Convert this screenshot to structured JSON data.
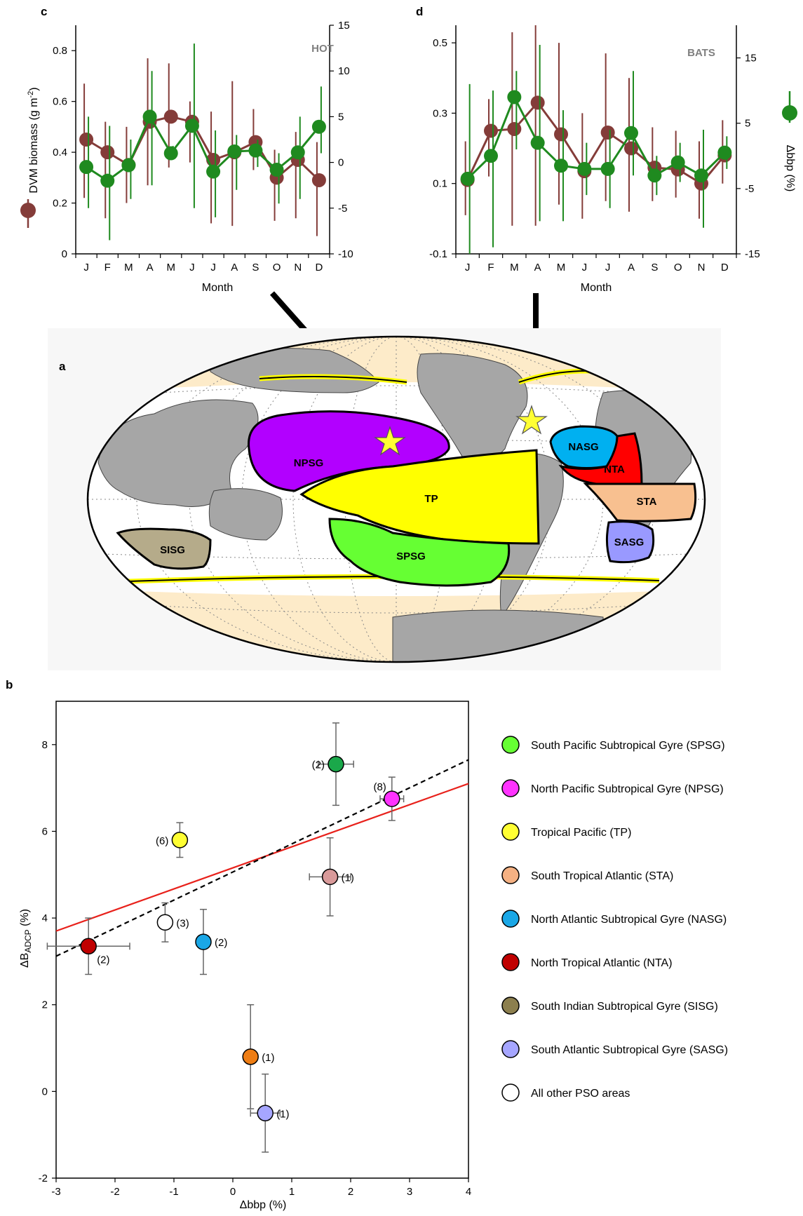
{
  "panels": {
    "a": "a",
    "b": "b",
    "c": "c",
    "d": "d"
  },
  "colors": {
    "dvm": "#843c39",
    "bbp": "#1f8a1f",
    "fit_red": "#e8211b",
    "fit_black": "#000000",
    "land": "#a6a6a6",
    "ocean_highlat": "#fdebc9",
    "ocean_gyre_band": "#ffffff",
    "boundary_yellow": "#ffff00"
  },
  "map": {
    "regions": [
      {
        "code": "NPSG",
        "label": "NPSG",
        "color": "#b200ff"
      },
      {
        "code": "TP",
        "label": "TP",
        "color": "#ffff00"
      },
      {
        "code": "SPSG",
        "label": "SPSG",
        "color": "#66ff33"
      },
      {
        "code": "SISG",
        "label": "SISG",
        "color": "#b5ab8a"
      },
      {
        "code": "NASG",
        "label": "NASG",
        "color": "#00b0f0"
      },
      {
        "code": "NTA",
        "label": "NTA",
        "color": "#ff0000"
      },
      {
        "code": "STA",
        "label": "STA",
        "color": "#f8c090"
      },
      {
        "code": "SASG",
        "label": "SASG",
        "color": "#9999ff"
      }
    ]
  },
  "chart_data": [
    {
      "panel": "c",
      "type": "line",
      "tag": "HOT",
      "xlabel": "Month",
      "ylabel_left_prefix": "DVM biomass (g m",
      "ylabel_left_sup": "-2",
      "ylabel_left_suffix": ")",
      "ylim_left": [
        0,
        0.9
      ],
      "yticks_left": [
        0,
        0.2,
        0.4,
        0.6,
        0.8
      ],
      "ytick_labels_left": [
        "0",
        "0.2",
        "0.4",
        "0.6",
        "0.8"
      ],
      "ylim_right": [
        -10,
        15
      ],
      "yticks_right": [
        -10,
        -5,
        0,
        5,
        10,
        15
      ],
      "ytick_labels_right": [
        "-10",
        "-5",
        "0",
        "5",
        "10",
        "15"
      ],
      "categories": [
        "J",
        "F",
        "M",
        "A",
        "M",
        "J",
        "J",
        "A",
        "S",
        "O",
        "N",
        "D"
      ],
      "series": [
        {
          "key": "dvm",
          "axis": "left",
          "values": [
            0.45,
            0.4,
            0.35,
            0.52,
            0.54,
            0.52,
            0.37,
            0.4,
            0.44,
            0.3,
            0.37,
            0.29
          ],
          "err_low": [
            0.22,
            0.14,
            0.2,
            0.27,
            0.34,
            0.36,
            0.12,
            0.11,
            0.33,
            0.13,
            0.14,
            0.07
          ],
          "err_high": [
            0.67,
            0.52,
            0.5,
            0.77,
            0.75,
            0.6,
            0.56,
            0.68,
            0.57,
            0.41,
            0.48,
            0.44
          ]
        },
        {
          "key": "bbp",
          "axis": "right",
          "values": [
            -0.5,
            -2.0,
            -0.3,
            5.0,
            1.0,
            4.0,
            -1.0,
            1.2,
            1.3,
            -0.8,
            1.1,
            3.9
          ],
          "err_low": [
            -5.0,
            -8.5,
            -4.0,
            -2.5,
            0.5,
            -5.0,
            -6.0,
            -3.0,
            -0.5,
            -4.5,
            -4.0,
            1.0
          ],
          "err_high": [
            5.0,
            4.0,
            2.5,
            10.0,
            1.8,
            13.0,
            3.5,
            3.0,
            2.5,
            1.0,
            5.0,
            8.3
          ]
        }
      ]
    },
    {
      "panel": "d",
      "type": "line",
      "tag": "BATS",
      "xlabel": "Month",
      "ylabel_right": "Δbbp (%)",
      "ylim_left": [
        -0.1,
        0.55
      ],
      "yticks_left": [
        -0.1,
        0.1,
        0.3,
        0.5
      ],
      "ytick_labels_left": [
        "-0.1",
        "0.1",
        "0.3",
        "0.5"
      ],
      "ylim_right": [
        -15,
        20
      ],
      "yticks_right": [
        -15,
        -5,
        5,
        15
      ],
      "ytick_labels_right": [
        "-15",
        "-5",
        "5",
        "15"
      ],
      "categories": [
        "J",
        "F",
        "M",
        "A",
        "M",
        "J",
        "J",
        "A",
        "S",
        "O",
        "N",
        "D"
      ],
      "series": [
        {
          "key": "dvm",
          "axis": "left",
          "values": [
            0.11,
            0.25,
            0.255,
            0.33,
            0.24,
            0.135,
            0.245,
            0.2,
            0.145,
            0.14,
            0.1,
            0.18
          ],
          "err_low": [
            0.01,
            0.12,
            -0.02,
            -0.02,
            0.04,
            0.0,
            0.05,
            0.02,
            0.05,
            0.06,
            0.0,
            0.1
          ],
          "err_high": [
            0.22,
            0.34,
            0.53,
            0.55,
            0.5,
            0.3,
            0.47,
            0.4,
            0.26,
            0.25,
            0.22,
            0.28
          ]
        },
        {
          "key": "bbp",
          "axis": "right",
          "values": [
            -3.5,
            0.0,
            9.0,
            2.0,
            -1.5,
            -2.0,
            -2.0,
            3.5,
            -3.0,
            -1.0,
            -3.0,
            0.5
          ],
          "err_low": [
            -15.0,
            -14.0,
            1.0,
            -10.0,
            -10.0,
            -6.0,
            -8.0,
            -3.0,
            -6.0,
            -4.0,
            -11.0,
            -2.0
          ],
          "err_high": [
            11.0,
            10.0,
            13.0,
            17.0,
            7.0,
            2.0,
            4.0,
            13.0,
            0.0,
            2.0,
            4.0,
            3.0
          ]
        }
      ]
    },
    {
      "panel": "b",
      "type": "scatter",
      "xlabel": "Δbbp (%)",
      "ylabel": "ΔB",
      "ylabel_sub": "ADCP",
      "ylabel_suffix": " (%)",
      "xlim": [
        -3,
        4
      ],
      "ylim": [
        -2,
        9
      ],
      "xticks": [
        -3,
        -2,
        -1,
        0,
        1,
        2,
        3,
        4
      ],
      "xtick_labels": [
        "-3",
        "-2",
        "-1",
        "0",
        "1",
        "2",
        "3",
        "4"
      ],
      "yticks": [
        -2,
        0,
        2,
        4,
        6,
        8
      ],
      "ytick_labels": [
        "-2",
        "0",
        "2",
        "4",
        "6",
        "8"
      ],
      "points": [
        {
          "x": 1.75,
          "y": 7.55,
          "xerr": 0.3,
          "yerr": 0.95,
          "color": "#1aa84a",
          "n_label": "(2)",
          "label_side": "left"
        },
        {
          "x": 2.7,
          "y": 6.75,
          "xerr": 0.2,
          "yerr": 0.5,
          "color": "#ff33ff",
          "n_label": "(8)",
          "label_side": "upleft"
        },
        {
          "x": -0.9,
          "y": 5.8,
          "xerr": 0.0,
          "yerr": 0.4,
          "color": "#ffff33",
          "n_label": "(6)",
          "label_side": "left"
        },
        {
          "x": 1.65,
          "y": 4.95,
          "xerr": 0.35,
          "yerr": 0.9,
          "color": "#d99a9a",
          "n_label": "(1)",
          "label_side": "right"
        },
        {
          "x": -1.15,
          "y": 3.9,
          "xerr": 0.0,
          "yerr": 0.45,
          "color": "#ffffff",
          "n_label": "(3)",
          "label_side": "right"
        },
        {
          "x": -0.5,
          "y": 3.45,
          "xerr": 0.0,
          "yerr": 0.75,
          "color": "#1aa7e6",
          "n_label": "(2)",
          "label_side": "right"
        },
        {
          "x": -2.45,
          "y": 3.35,
          "xerr": 0.7,
          "yerr": 0.65,
          "color": "#c00000",
          "n_label": "(2)",
          "label_side": "downright"
        },
        {
          "x": 0.3,
          "y": 0.8,
          "xerr": 0.0,
          "yerr": 1.2,
          "color": "#ee7d14",
          "n_label": "(1)",
          "label_side": "right"
        },
        {
          "x": 0.55,
          "y": -0.5,
          "xerr": 0.25,
          "yerr": 0.9,
          "color": "#a6a6ff",
          "n_label": "(1)",
          "label_side": "right"
        }
      ],
      "fits": [
        {
          "key": "red",
          "color": "#e8211b",
          "dash": false,
          "x": [
            -3,
            4
          ],
          "y": [
            3.7,
            7.1
          ]
        },
        {
          "key": "black",
          "color": "#000000",
          "dash": true,
          "x": [
            -3,
            4
          ],
          "y": [
            3.12,
            7.65
          ]
        }
      ],
      "legend": [
        {
          "label": "South Pacific  Subtropical Gyre (SPSG)",
          "color": "#66ff33"
        },
        {
          "label": "North Pacific Subtropical Gyre (NPSG)",
          "color": "#ff33ff"
        },
        {
          "label": "Tropical Pacific (TP)",
          "color": "#ffff33"
        },
        {
          "label": "South Tropical Atlantic (STA)",
          "color": "#f4b183"
        },
        {
          "label": "North Atlantic Subtropical Gyre (NASG)",
          "color": "#1aa7e6"
        },
        {
          "label": "North Tropical Atlantic (NTA)",
          "color": "#c00000"
        },
        {
          "label": "South Indian Subtropical Gyre (SISG)",
          "color": "#8c7f4e"
        },
        {
          "label": "South Atlantic Subtropical Gyre (SASG)",
          "color": "#a6a6ff"
        },
        {
          "label": "All other PSO areas",
          "color": "#ffffff"
        }
      ]
    }
  ]
}
